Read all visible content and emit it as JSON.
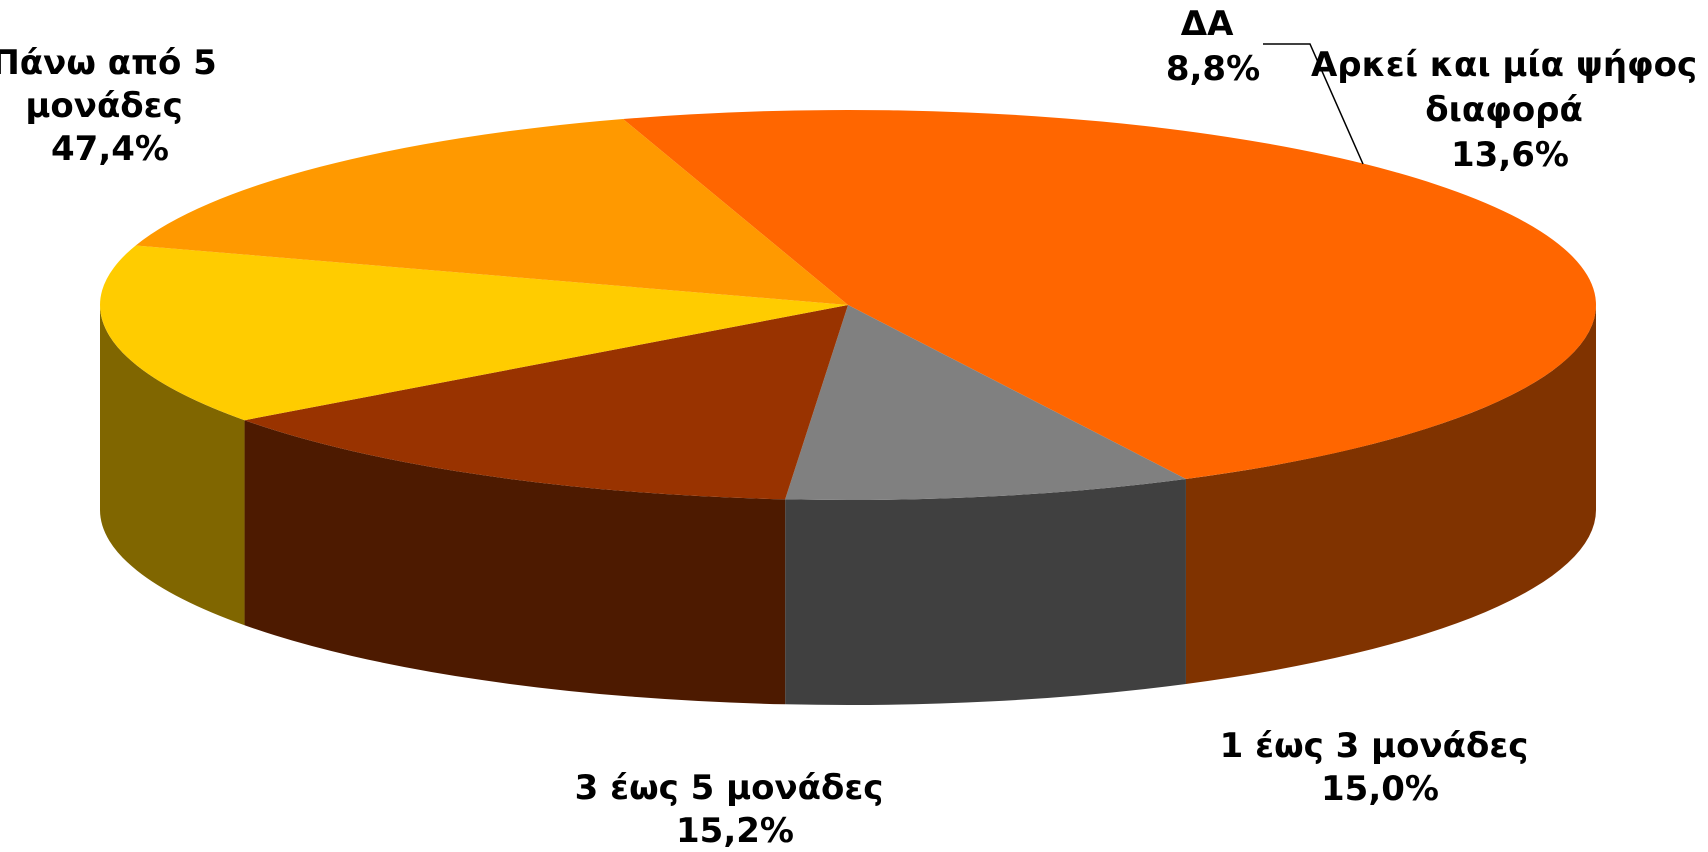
{
  "chart_data": {
    "type": "pie",
    "title": "",
    "three_d": true,
    "slices": [
      {
        "name_lines": [
          "Πάνω από 5",
          "μονάδες"
        ],
        "value": 47.4,
        "value_label": "47,4%",
        "color": "#FF6600",
        "side_color": "#803300"
      },
      {
        "name_lines": [
          "ΔΑ"
        ],
        "value": 8.8,
        "value_label": "8,8%",
        "color": "#808080",
        "side_color": "#404040"
      },
      {
        "name_lines": [
          "Αρκεί και μία ψήφος",
          "διαφορά"
        ],
        "value": 13.6,
        "value_label": "13,6%",
        "color": "#993300",
        "side_color": "#4D1A00"
      },
      {
        "name_lines": [
          "1 έως 3 μονάδες"
        ],
        "value": 15.0,
        "value_label": "15,0%",
        "color": "#FFCC00",
        "side_color": "#806600"
      },
      {
        "name_lines": [
          "3 έως 5 μονάδες"
        ],
        "value": 15.2,
        "value_label": "15,2%",
        "color": "#FF9900",
        "side_color": "#804D00"
      }
    ]
  }
}
